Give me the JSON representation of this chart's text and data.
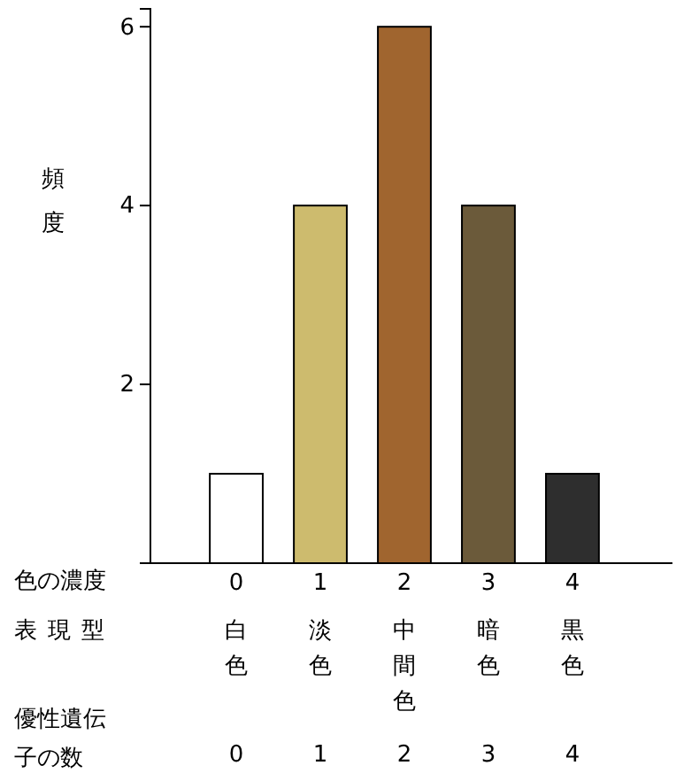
{
  "chart_data": {
    "type": "bar",
    "ylabel": "頻度",
    "xlabel": "色の濃度",
    "categories": [
      "0",
      "1",
      "2",
      "3",
      "4"
    ],
    "values": [
      1,
      4,
      6,
      4,
      1
    ],
    "colors": [
      "#ffffff",
      "#cdbb6e",
      "#a0652f",
      "#6b5a3a",
      "#2e2e2e"
    ],
    "ylim": [
      0,
      6.2
    ],
    "yticks": [
      2,
      4,
      6
    ],
    "grid": false,
    "annotations": [
      "表現型",
      "白色",
      "淡色",
      "中間色",
      "暗色",
      "黒色",
      "優性遺伝子の数",
      "0",
      "1",
      "2",
      "3",
      "4"
    ]
  }
}
